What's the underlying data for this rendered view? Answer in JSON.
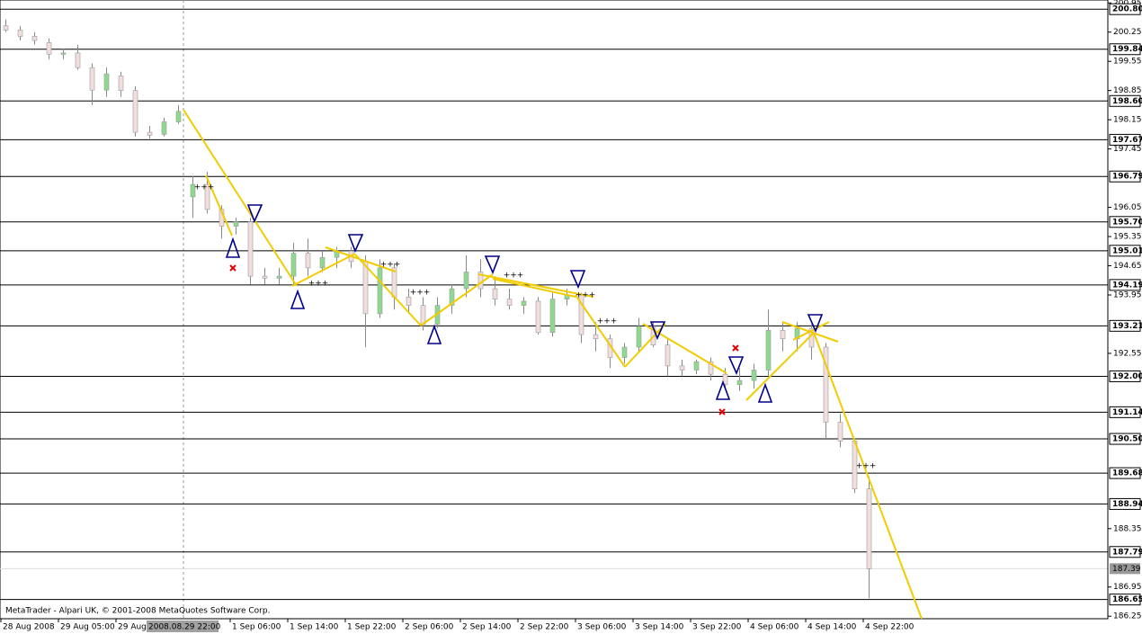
{
  "chart_data": {
    "type": "candlestick",
    "footer": "MetaTrader - Alpari UK, © 2001-2008 MetaQuotes Software Corp.",
    "ylim": [
      186.19,
      201.02
    ],
    "yticks": [
      200.95,
      200.25,
      199.55,
      198.85,
      198.15,
      197.45,
      196.05,
      195.35,
      194.65,
      193.95,
      192.55,
      188.35,
      186.95,
      186.25
    ],
    "levels": [
      {
        "value": 200.8,
        "label": "200.80"
      },
      199.84,
      {
        "value": 198.6,
        "label": "198.60"
      },
      197.67,
      196.79,
      {
        "value": 195.7,
        "label": "195.70"
      },
      195.01,
      194.19,
      193.21,
      {
        "value": 192,
        "label": "192.00"
      },
      191.14,
      {
        "value": 190.5,
        "label": "190.50"
      },
      189.68,
      188.94,
      187.79,
      186.65
    ],
    "current_price": 187.39,
    "xticks": [
      "28 Aug 2008",
      "29 Aug 05:00",
      "29 Aug",
      "2008.08.29 22:00",
      "1 Sep 06:00",
      "1 Sep 14:00",
      "1 Sep 22:00",
      "2 Sep 06:00",
      "2 Sep 14:00",
      "2 Sep 22:00",
      "3 Sep 06:00",
      "3 Sep 14:00",
      "3 Sep 22:00",
      "4 Sep 06:00",
      "4 Sep 14:00",
      "4 Sep 22:00"
    ],
    "signal_text": "+++",
    "candles": [
      [
        200.4,
        200.55,
        200.25,
        200.3
      ],
      [
        200.3,
        200.4,
        200.05,
        200.15
      ],
      [
        200.15,
        200.25,
        199.95,
        200.05
      ],
      [
        200.0,
        200.1,
        199.6,
        199.72
      ],
      [
        199.72,
        199.85,
        199.6,
        199.75
      ],
      [
        199.75,
        199.95,
        199.35,
        199.4
      ],
      [
        199.4,
        199.5,
        198.5,
        198.86
      ],
      [
        198.86,
        199.4,
        198.7,
        199.25
      ],
      [
        199.2,
        199.3,
        198.7,
        198.85
      ],
      [
        198.85,
        198.95,
        197.75,
        197.85
      ],
      [
        197.85,
        198.0,
        197.7,
        197.78
      ],
      [
        197.8,
        198.2,
        197.75,
        198.1
      ],
      [
        198.1,
        198.5,
        198.05,
        198.35
      ],
      [
        196.3,
        196.8,
        195.8,
        196.6
      ],
      [
        196.6,
        196.9,
        195.9,
        196.0
      ],
      [
        196.0,
        196.1,
        195.3,
        195.6
      ],
      [
        195.6,
        195.8,
        195.4,
        195.7
      ],
      [
        195.7,
        195.8,
        194.2,
        194.4
      ],
      [
        194.4,
        194.6,
        194.2,
        194.35
      ],
      [
        194.35,
        194.6,
        194.2,
        194.4
      ],
      [
        194.4,
        195.2,
        194.2,
        194.95
      ],
      [
        194.95,
        195.3,
        194.4,
        194.6
      ],
      [
        194.6,
        195.0,
        194.5,
        194.85
      ],
      [
        194.85,
        195.1,
        194.6,
        195.0
      ],
      [
        195.0,
        195.1,
        194.6,
        194.75
      ],
      [
        194.75,
        194.9,
        192.7,
        193.5
      ],
      [
        193.5,
        194.8,
        193.4,
        194.6
      ],
      [
        194.6,
        194.7,
        193.6,
        193.9
      ],
      [
        193.9,
        194.1,
        193.5,
        193.7
      ],
      [
        193.7,
        193.9,
        193.1,
        193.25
      ],
      [
        193.25,
        193.9,
        193.15,
        193.7
      ],
      [
        193.7,
        194.2,
        193.5,
        194.1
      ],
      [
        194.1,
        194.9,
        193.9,
        194.5
      ],
      [
        194.5,
        194.8,
        193.9,
        194.1
      ],
      [
        194.1,
        194.4,
        193.7,
        193.85
      ],
      [
        193.85,
        194.1,
        193.6,
        193.7
      ],
      [
        193.7,
        193.9,
        193.5,
        193.8
      ],
      [
        193.8,
        193.9,
        193.0,
        193.05
      ],
      [
        193.05,
        194.0,
        192.95,
        193.85
      ],
      [
        193.85,
        194.1,
        193.7,
        193.95
      ],
      [
        193.95,
        194.0,
        192.8,
        193.0
      ],
      [
        193.0,
        193.3,
        192.6,
        192.9
      ],
      [
        192.9,
        193.0,
        192.2,
        192.45
      ],
      [
        192.45,
        192.8,
        192.3,
        192.7
      ],
      [
        192.7,
        193.4,
        192.6,
        193.2
      ],
      [
        193.2,
        193.3,
        192.7,
        192.75
      ],
      [
        192.75,
        192.9,
        192.0,
        192.25
      ],
      [
        192.25,
        192.4,
        192.0,
        192.15
      ],
      [
        192.15,
        192.4,
        192.05,
        192.35
      ],
      [
        192.35,
        192.45,
        191.9,
        192.05
      ],
      [
        192.05,
        192.2,
        191.7,
        191.8
      ],
      [
        191.8,
        192.2,
        191.65,
        191.9
      ],
      [
        191.9,
        192.3,
        191.7,
        192.15
      ],
      [
        192.15,
        193.6,
        192.0,
        193.1
      ],
      [
        193.1,
        193.3,
        192.6,
        192.9
      ],
      [
        192.9,
        193.3,
        192.6,
        193.15
      ],
      [
        193.15,
        193.25,
        192.4,
        192.7
      ],
      [
        192.7,
        192.8,
        190.5,
        190.9
      ],
      [
        190.9,
        191.1,
        190.3,
        190.45
      ],
      [
        190.45,
        190.5,
        189.2,
        189.3
      ],
      [
        189.3,
        189.6,
        186.68,
        187.39
      ]
    ]
  }
}
